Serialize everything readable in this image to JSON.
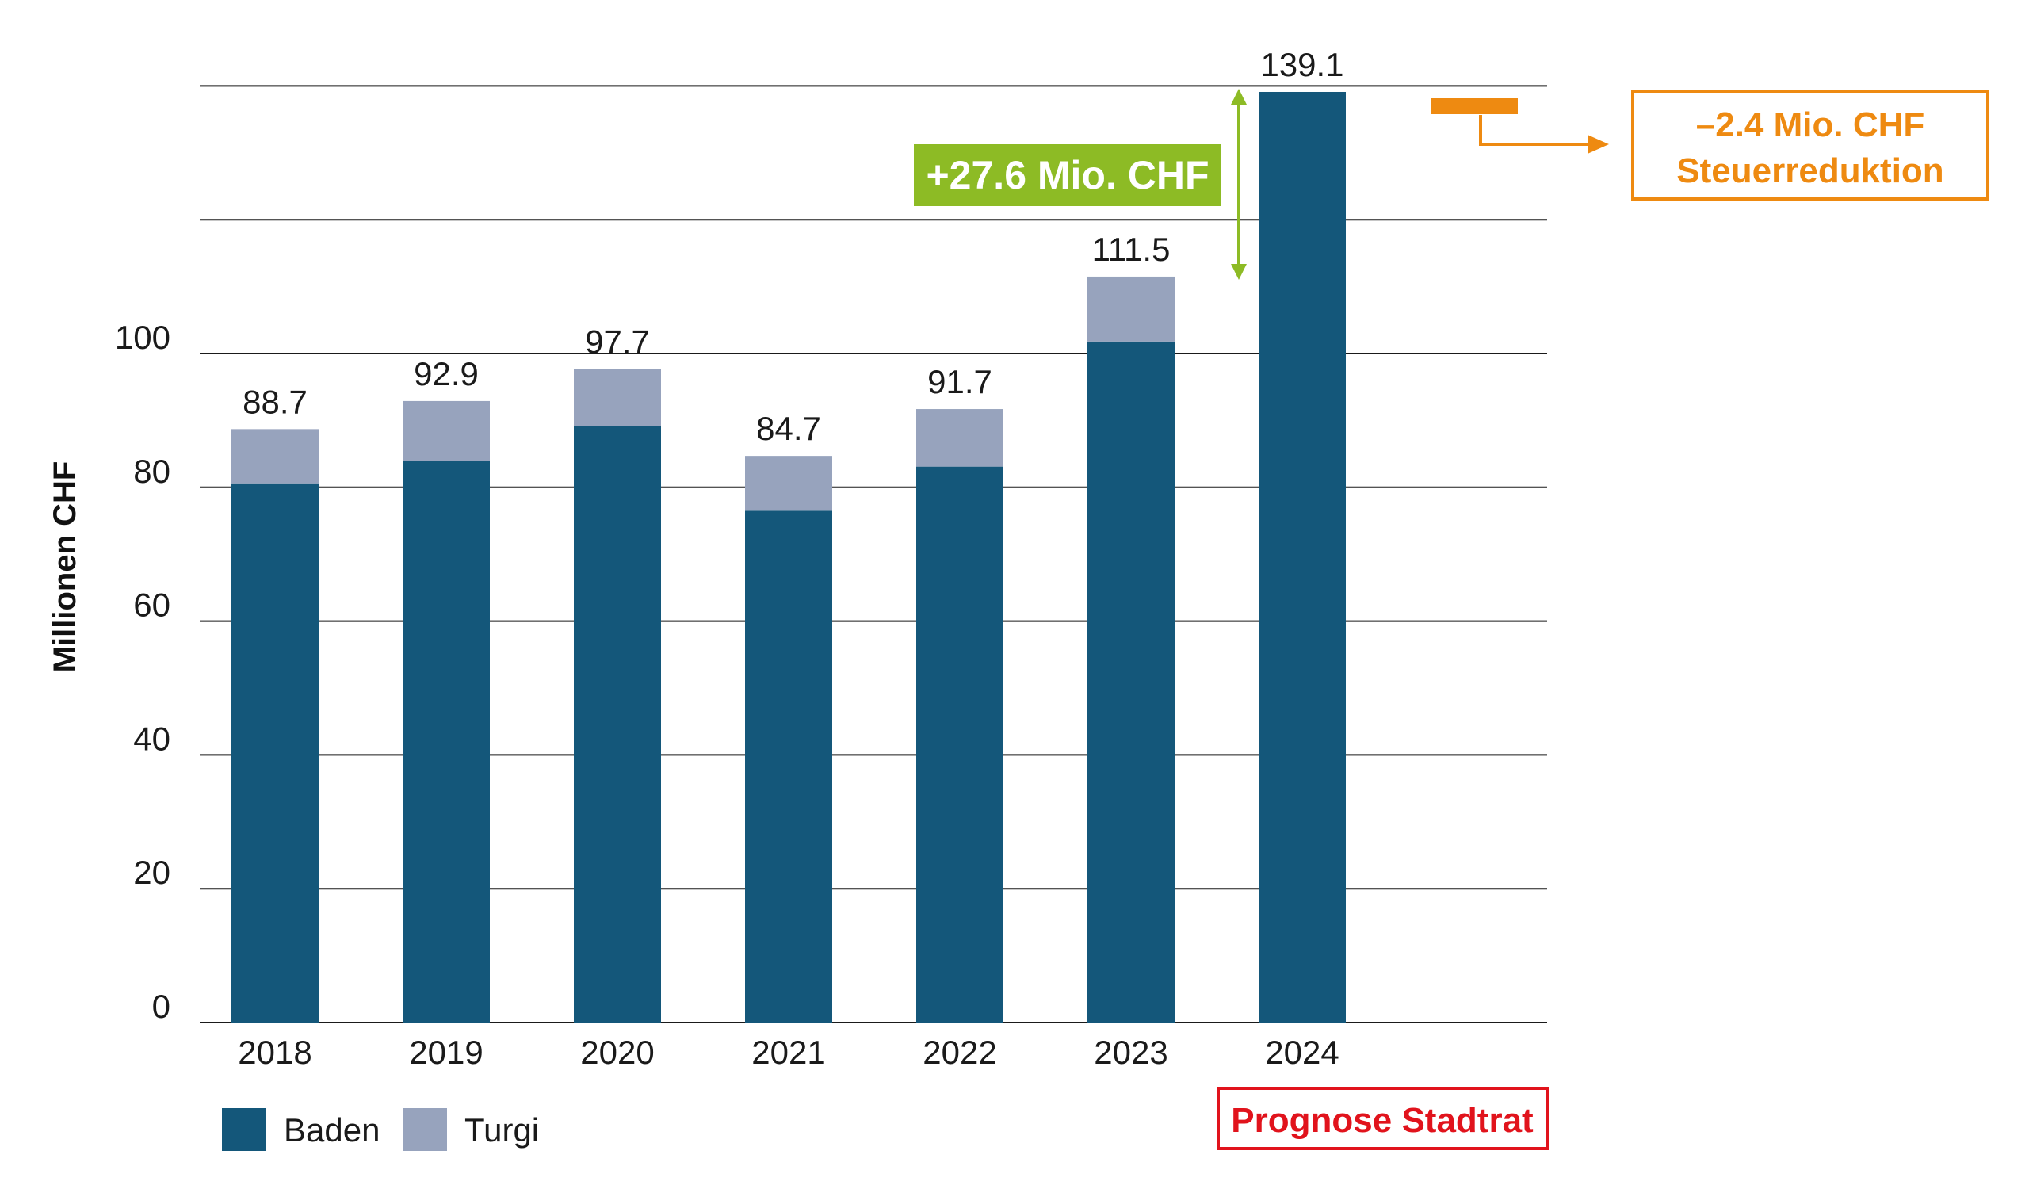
{
  "chart_data": {
    "type": "bar",
    "stacked": true,
    "categories": [
      "2018",
      "2019",
      "2020",
      "2021",
      "2022",
      "2023",
      "2024"
    ],
    "series": [
      {
        "name": "Baden",
        "color": "#14577a",
        "values": [
          80.6,
          84.0,
          89.2,
          76.5,
          83.1,
          101.8,
          139.1
        ]
      },
      {
        "name": "Turgi",
        "color": "#97a3bd",
        "values": [
          8.1,
          8.9,
          8.5,
          8.2,
          8.6,
          9.7,
          0
        ]
      }
    ],
    "totals": [
      "88.7",
      "92.9",
      "97.7",
      "84.7",
      "91.7",
      "111.5",
      "139.1"
    ],
    "ylabel": "Millionen CHF",
    "yticks": [
      "0",
      "20",
      "40",
      "60",
      "80",
      "100"
    ],
    "ylim": [
      0,
      140
    ],
    "grid": true,
    "legend": "bottom-left",
    "annotations": {
      "increase": {
        "text": "+27.6 Mio. CHF",
        "color": "#8dbb25",
        "from": 111.5,
        "to": 139.1
      },
      "tax_reduction": {
        "line1": "–2.4 Mio. CHF",
        "line2": "Steuerreduktion",
        "color": "#ee8a11",
        "value": 139.1
      },
      "forecast": {
        "text": "Prognose Stadtrat",
        "color": "#e1131c"
      }
    }
  }
}
